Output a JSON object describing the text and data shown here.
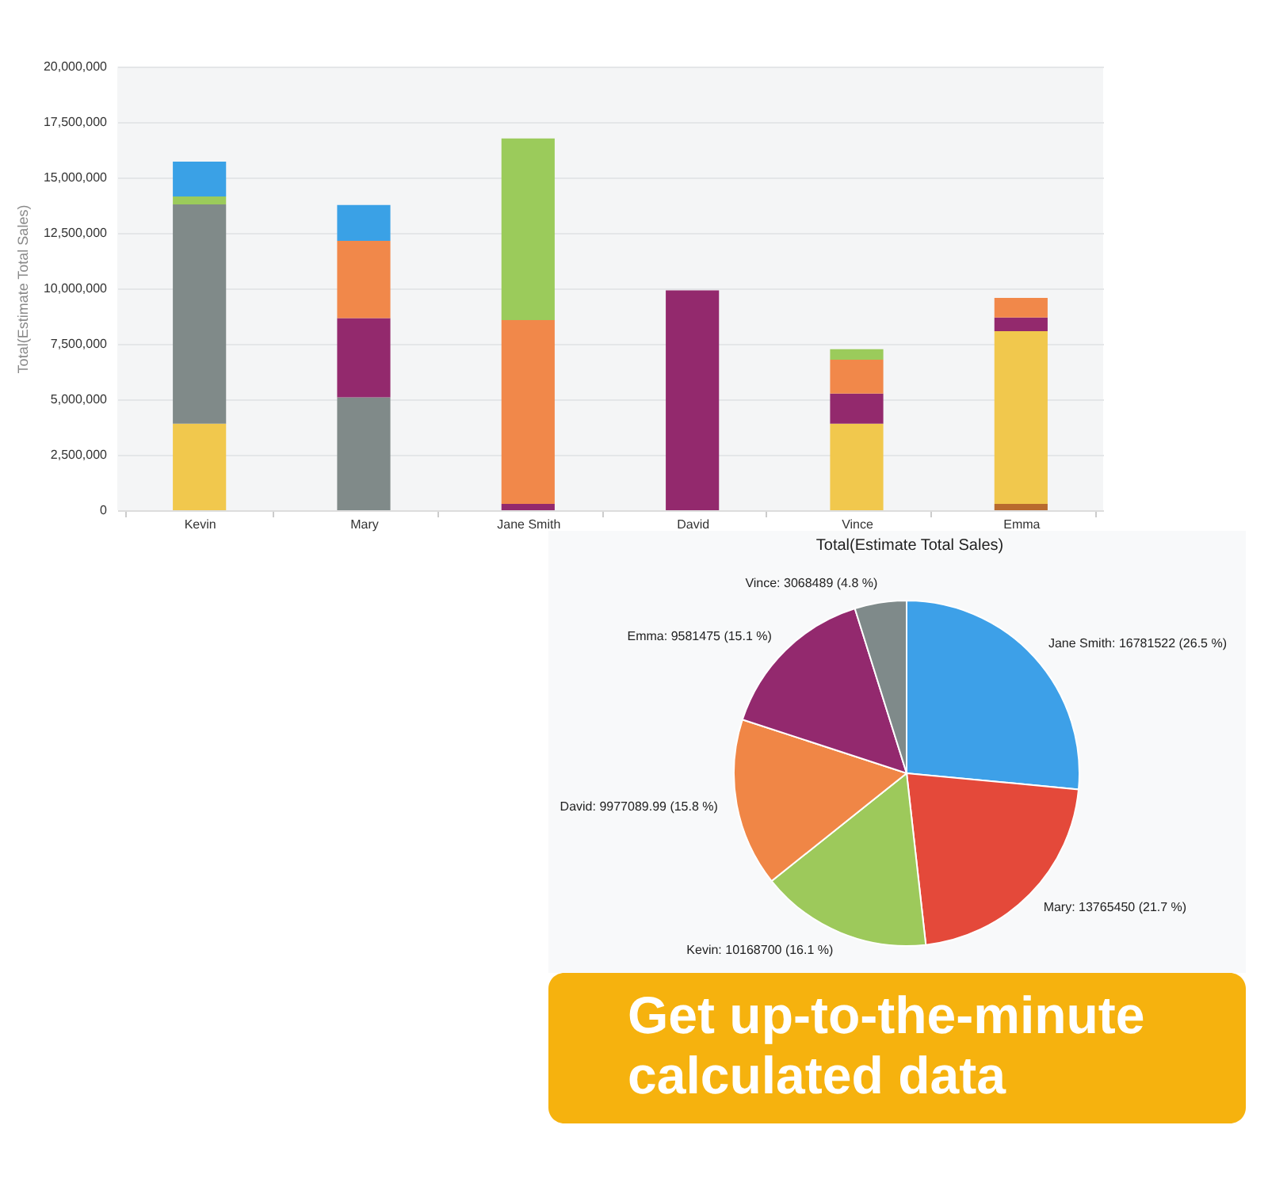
{
  "chart_data": [
    {
      "type": "bar",
      "ylabel": "Total(Estimate Total Sales)",
      "categories": [
        "Kevin",
        "Mary",
        "Jane Smith",
        "David",
        "Vince",
        "Emma"
      ],
      "stacked": true,
      "series": [
        {
          "color": "#b86a2e",
          "values": [
            null,
            null,
            null,
            null,
            null,
            290000
          ]
        },
        {
          "color": "#f1c84d",
          "values": [
            3900000,
            null,
            null,
            null,
            3900000,
            7780000
          ]
        },
        {
          "color": "#808a89",
          "values": [
            9890000,
            5090000,
            null,
            null,
            null,
            null
          ]
        },
        {
          "color": "#93296d",
          "values": [
            null,
            3570000,
            290000,
            9910000,
            1360000,
            620000
          ]
        },
        {
          "color": "#f1884a",
          "values": [
            null,
            3480000,
            8280000,
            null,
            1530000,
            880000
          ]
        },
        {
          "color": "#9bcb5b",
          "values": [
            350000,
            null,
            8190000,
            null,
            470000,
            null
          ]
        },
        {
          "color": "#3aa1e6",
          "values": [
            1570000,
            1620000,
            null,
            null,
            null,
            null
          ]
        }
      ],
      "ylim": [
        0,
        20000000
      ],
      "yticks": [
        0,
        {
          "value": 2500000,
          "label": "2,500,000"
        },
        {
          "value": 5000000,
          "label": "5,000,000"
        },
        {
          "value": 7500000,
          "label": "7,500,000"
        },
        {
          "value": 10000000,
          "label": "10,000,000"
        },
        {
          "value": 12500000,
          "label": "12,500,000"
        },
        {
          "value": 15000000,
          "label": "15,000,000"
        },
        {
          "value": 17500000,
          "label": "17,500,000"
        },
        {
          "value": 20000000,
          "label": "20,000,000"
        }
      ],
      "grid": "y"
    },
    {
      "type": "pie",
      "title": "Total(Estimate Total Sales)",
      "categories": [
        "Jane Smith",
        "Mary",
        "Kevin",
        "David",
        "Emma",
        "Vince"
      ],
      "values": [
        16781522,
        13765450,
        10168700,
        9977089.99,
        9581475,
        3068489
      ],
      "colors": [
        "#3da0e8",
        "#e4493a",
        "#9dc95b",
        "#f08646",
        "#93296e",
        "#7f8a8a"
      ],
      "value_labels": [
        "16781522 (26.5 %)",
        "13765450 (21.7 %)",
        "10168700 (16.1 %)",
        "9977089.99 (15.8 %)",
        "9581475 (15.1 %)",
        "3068489 (4.8 %)"
      ]
    },
    {
      "type": "other",
      "title": "Get up-to-the-minute calculated data",
      "color": "#f6b20e"
    }
  ]
}
